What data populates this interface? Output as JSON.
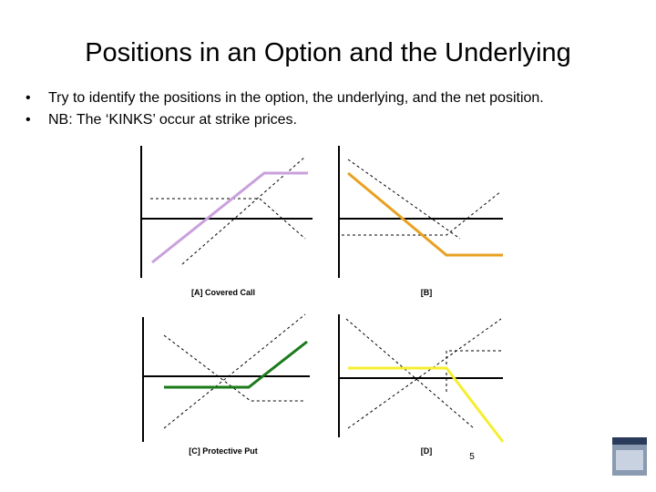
{
  "header": {
    "title": "Positions in an Option and the Underlying"
  },
  "bullets": [
    "Try to identify the positions in the option, the underlying, and the net position.",
    "NB:  The ‘KINKS’ occur at strike prices."
  ],
  "panels": [
    {
      "caption": "[A] Covered Call"
    },
    {
      "caption": "[B]"
    },
    {
      "caption": "[C] Protective Put"
    },
    {
      "caption": "[D]"
    }
  ],
  "footer": {
    "page_number": "5"
  }
}
